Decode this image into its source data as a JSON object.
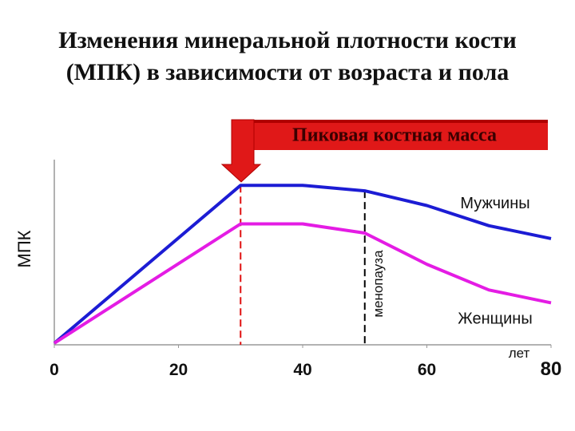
{
  "chart_data": {
    "type": "line",
    "title": [
      "Изменения минеральной плотности кости",
      "(МПК) в зависимости от возраста и пола"
    ],
    "annotation": "Пиковая костная масса",
    "y_label": "МПК",
    "x_label": "лет",
    "x": [
      0,
      30,
      40,
      50,
      60,
      70,
      80
    ],
    "series": [
      {
        "name": "Мужчины",
        "color": "#1c1cd4",
        "values": [
          0,
          86,
          86,
          83,
          75,
          64,
          57
        ]
      },
      {
        "name": "Женщины",
        "color": "#e41ce4",
        "values": [
          0,
          65,
          65,
          60,
          43,
          29,
          22
        ]
      }
    ],
    "vlines": [
      {
        "x": 30,
        "color": "#e01010"
      },
      {
        "x": 50,
        "color": "#000000",
        "label": "менопауза"
      }
    ],
    "xlim": [
      0,
      80
    ],
    "xticks": [
      0,
      20,
      40,
      60,
      80
    ],
    "ylim": [
      0,
      100
    ]
  }
}
